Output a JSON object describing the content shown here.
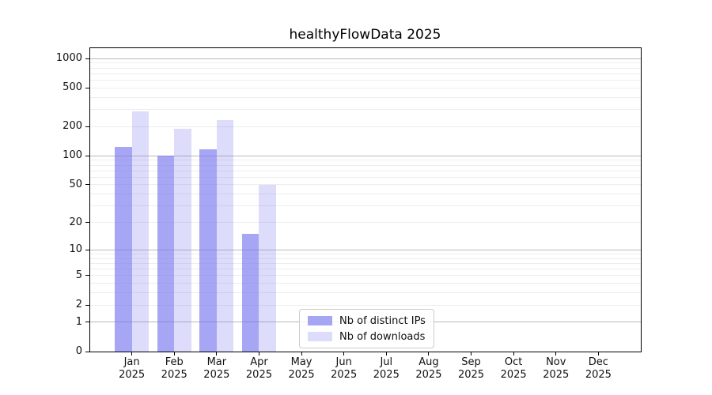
{
  "title": "healthyFlowData 2025",
  "colors": {
    "bar_base": "#7777ee",
    "distinct_ips_fill": "rgba(119,119,238,0.65)",
    "downloads_fill": "rgba(119,119,238,0.25)",
    "grid_major": "#b8b8b8",
    "grid_minor": "#ededed",
    "axis": "#000000"
  },
  "legend": {
    "items": [
      {
        "label": "Nb of distinct IPs"
      },
      {
        "label": "Nb of downloads"
      }
    ]
  },
  "chart_data": {
    "type": "bar",
    "title": "healthyFlowData 2025",
    "categories": [
      "Jan",
      "Feb",
      "Mar",
      "Apr",
      "May",
      "Jun",
      "Jul",
      "Aug",
      "Sep",
      "Oct",
      "Nov",
      "Dec"
    ],
    "year_label": "2025",
    "series": [
      {
        "name": "Nb of distinct IPs",
        "color": "rgba(119,119,238,0.65)",
        "values": [
          123,
          100,
          117,
          15,
          0,
          0,
          0,
          0,
          0,
          0,
          0,
          0
        ]
      },
      {
        "name": "Nb of downloads",
        "color": "rgba(119,119,238,0.25)",
        "values": [
          285,
          190,
          235,
          50,
          0,
          0,
          0,
          0,
          0,
          0,
          0,
          0
        ]
      }
    ],
    "yscale": "log10(1+v)",
    "ylim": [
      0,
      1300
    ],
    "yticks": [
      0,
      1,
      2,
      5,
      10,
      20,
      50,
      100,
      200,
      500,
      1000
    ],
    "grid": "horizontal, log minor lines, darker at powers of 10",
    "legend_position": "lower-center",
    "xlabel": "",
    "ylabel": ""
  }
}
